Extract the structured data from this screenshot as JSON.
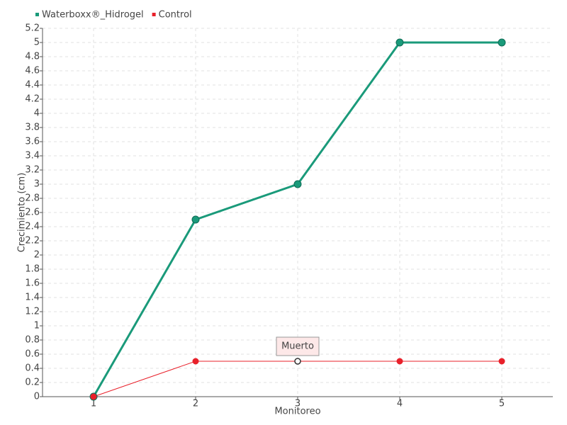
{
  "chart_data": {
    "type": "line",
    "x_label": "Monitoreo",
    "y_label": "Crecimiento (cm)",
    "categories": [
      "1",
      "2",
      "3",
      "4",
      "5"
    ],
    "series": [
      {
        "name": "Waterboxx®_Hidrogel",
        "color": "#1a9a7a",
        "values": [
          0,
          2.5,
          3,
          5,
          5
        ]
      },
      {
        "name": "Control",
        "color": "#e8202a",
        "values": [
          0,
          0.5,
          0.5,
          0.5,
          0.5
        ]
      }
    ],
    "ylim": [
      0,
      5.2
    ],
    "yticks": [
      0,
      0.2,
      0.4,
      0.6,
      0.8,
      1,
      1.2,
      1.4,
      1.6,
      1.8,
      2,
      2.2,
      2.4,
      2.6,
      2.8,
      3,
      3.2,
      3.4,
      3.6,
      3.8,
      4,
      4.2,
      4.4,
      4.6,
      4.8,
      5,
      5.2
    ],
    "grid": true,
    "legend": "top-left",
    "annotation": {
      "text": "Muerto",
      "series": "Control",
      "category": "3"
    }
  }
}
